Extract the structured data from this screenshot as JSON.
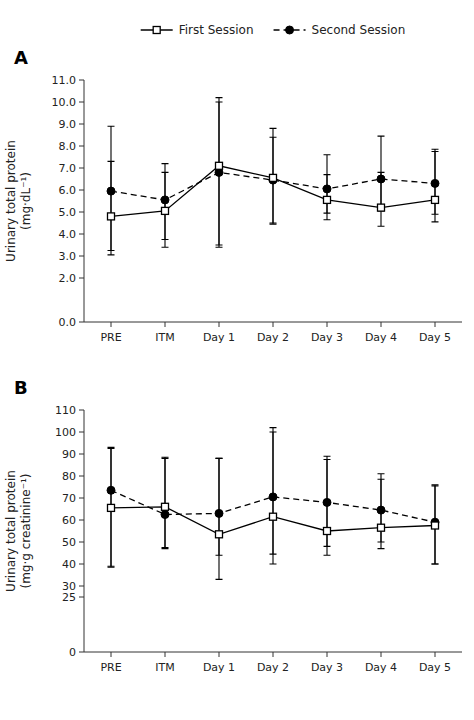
{
  "chart_data": [
    {
      "type": "line",
      "title": "A",
      "y_label": "Urinary total protein\n(mg·dL⁻¹)",
      "categories": [
        "PRE",
        "ITM",
        "Day 1",
        "Day 2",
        "Day 3",
        "Day 4",
        "Day 5"
      ],
      "ylim": [
        0.0,
        11.0
      ],
      "yticks": [
        {
          "value": 0.0,
          "label": "0.0"
        },
        {
          "value": 2.0,
          "label": "2.0"
        },
        {
          "value": 3.0,
          "label": "3.0"
        },
        {
          "value": 4.0,
          "label": "4.0"
        },
        {
          "value": 5.0,
          "label": "5.0"
        },
        {
          "value": 6.0,
          "label": "6.0"
        },
        {
          "value": 7.0,
          "label": "7.0"
        },
        {
          "value": 8.0,
          "label": "8.0"
        },
        {
          "value": 9.0,
          "label": "9.0"
        },
        {
          "value": 10.0,
          "label": "10.0"
        },
        {
          "value": 11.0,
          "label": "11.0"
        }
      ],
      "grid": false,
      "legend": "top",
      "series": [
        {
          "name": "First Session",
          "color": "#000000",
          "marker": "square",
          "line_style": "solid",
          "values": [
            4.8,
            5.05,
            7.1,
            6.55,
            5.55,
            5.2,
            5.55
          ],
          "error_low": [
            1.55,
            1.65,
            3.6,
            2.05,
            0.9,
            0.85,
            1.0
          ],
          "error_high": [
            2.5,
            1.75,
            3.1,
            1.85,
            1.15,
            1.6,
            2.2
          ]
        },
        {
          "name": "Second Session",
          "color": "#000000",
          "marker": "circle",
          "line_style": "dashed",
          "values": [
            5.95,
            5.55,
            6.8,
            6.45,
            6.05,
            6.5,
            6.3
          ],
          "error_low": [
            2.9,
            1.8,
            3.4,
            2.0,
            1.1,
            1.45,
            1.4
          ],
          "error_high": [
            2.95,
            1.65,
            3.2,
            2.35,
            1.55,
            1.95,
            1.55
          ]
        }
      ]
    },
    {
      "type": "line",
      "title": "B",
      "y_label": "Urinary total protein\n(mg·g creatinine⁻¹)",
      "categories": [
        "PRE",
        "ITM",
        "Day 1",
        "Day 2",
        "Day 3",
        "Day 4",
        "Day 5"
      ],
      "ylim": [
        0,
        110
      ],
      "yticks": [
        0,
        25,
        30,
        40,
        50,
        60,
        70,
        80,
        90,
        100,
        110
      ],
      "grid": false,
      "series": [
        {
          "name": "First Session",
          "color": "#000000",
          "marker": "square",
          "line_style": "solid",
          "values": [
            65.5,
            66.0,
            53.5,
            61.5,
            55.0,
            56.5,
            57.5
          ],
          "error_low": [
            27.0,
            19.0,
            20.5,
            17.0,
            11.0,
            9.5,
            17.5
          ],
          "error_high": [
            27.0,
            22.0,
            34.5,
            38.5,
            32.5,
            22.0,
            18.0
          ]
        },
        {
          "name": "Second Session",
          "color": "#000000",
          "marker": "circle",
          "line_style": "dashed",
          "values": [
            73.5,
            62.5,
            63.0,
            70.5,
            68.0,
            64.5,
            59.0
          ],
          "error_low": [
            34.5,
            15.0,
            19.0,
            30.5,
            20.0,
            14.5,
            19.0
          ],
          "error_high": [
            19.5,
            26.0,
            25.0,
            31.5,
            21.0,
            16.5,
            17.0
          ]
        }
      ]
    }
  ]
}
